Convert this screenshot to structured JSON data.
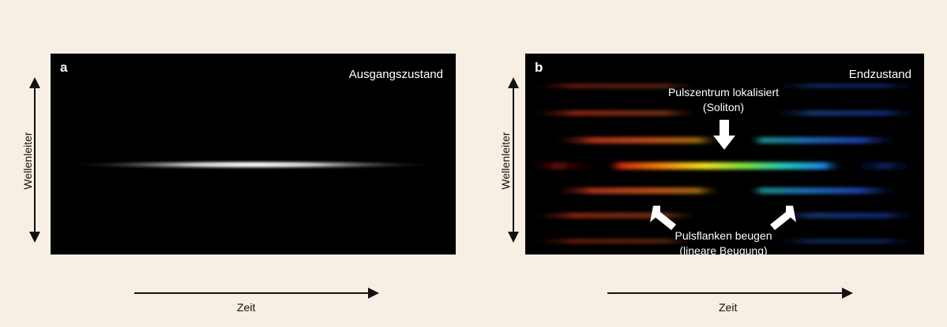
{
  "panel_a": {
    "letter": "a",
    "state_label": "Ausgangszustand",
    "y_axis_label": "Wellenleiter",
    "x_axis_label": "Zeit"
  },
  "panel_b": {
    "letter": "b",
    "state_label": "Endzustand",
    "y_axis_label": "Wellenleiter",
    "x_axis_label": "Zeit",
    "annotation_top": {
      "line1": "Pulszentrum lokalisiert",
      "line2": "(Soliton)"
    },
    "annotation_bottom": {
      "line1": "Pulsflanken beugen",
      "line2": "(lineare Beugung)"
    }
  },
  "colors": {
    "background": "#f8efe4",
    "panel": "#000000",
    "arrow_dark": "#111111",
    "arrow_light": "#ffffff"
  },
  "icons": [
    "double-headed-vertical-arrow",
    "right-arrow",
    "down-arrow",
    "diagonal-arrow"
  ]
}
